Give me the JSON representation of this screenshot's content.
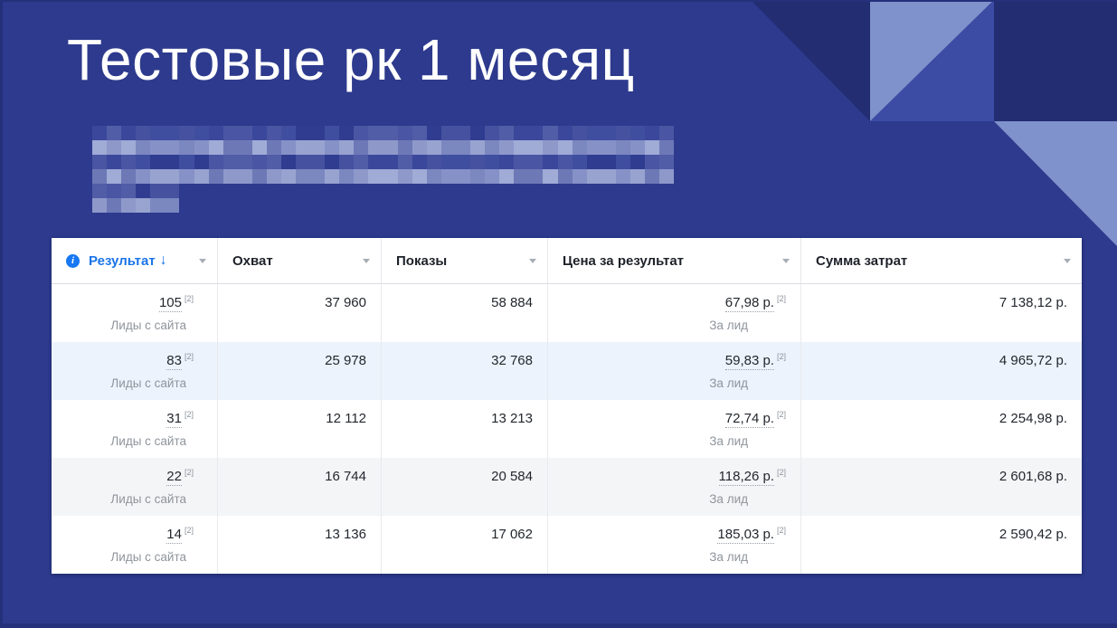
{
  "slide": {
    "title": "Тестовые рк 1 месяц"
  },
  "colors": {
    "background": "#2d3a8d",
    "edge": "#25307b",
    "corner_dark": "#232d72",
    "corner_mid": "#3c4ba3",
    "corner_light": "#7f92cb",
    "accent_blue": "#1a74e8",
    "info_icon_blue": "#1877f2",
    "row_highlight_blue": "#ecf3fc",
    "row_highlight_gray": "#f4f5f7",
    "subtext_gray": "#8f949c"
  },
  "redaction": {
    "palettes": {
      "dark": [
        "#3b479a",
        "#46529f",
        "#515da7",
        "#2f3c90",
        "#4a56a3",
        "#404ea0"
      ],
      "light": [
        "#7b87bf",
        "#8e99ca",
        "#98a3d0",
        "#6d79b6",
        "#8691c7",
        "#a0abd6"
      ]
    },
    "rows": [
      {
        "cells": 40,
        "palette": "dark",
        "short": false
      },
      {
        "cells": 40,
        "palette": "light",
        "short": false
      },
      {
        "cells": 40,
        "palette": "dark",
        "short": false
      },
      {
        "cells": 40,
        "palette": "light",
        "short": false
      },
      {
        "cells": 6,
        "palette": "dark",
        "short": true
      },
      {
        "cells": 6,
        "palette": "light",
        "short": true
      }
    ]
  },
  "table": {
    "columns": [
      {
        "key": "result",
        "label": "Результат",
        "sort_arrow": "↓",
        "sorted": true,
        "info_icon": true
      },
      {
        "key": "reach",
        "label": "Охват"
      },
      {
        "key": "impressions",
        "label": "Показы"
      },
      {
        "key": "cost_per_result",
        "label": "Цена за результат"
      },
      {
        "key": "spend",
        "label": "Сумма затрат"
      }
    ],
    "rows": [
      {
        "result": "105",
        "result_note": "[2]",
        "result_sub": "Лиды с сайта",
        "reach": "37 960",
        "impressions": "58 884",
        "cost_per_result": "67,98 р.",
        "cost_note": "[2]",
        "cost_sub": "За лид",
        "spend": "7 138,12 р.",
        "highlight": "none"
      },
      {
        "result": "83",
        "result_note": "[2]",
        "result_sub": "Лиды с сайта",
        "reach": "25 978",
        "impressions": "32 768",
        "cost_per_result": "59,83 р.",
        "cost_note": "[2]",
        "cost_sub": "За лид",
        "spend": "4 965,72 р.",
        "highlight": "blue"
      },
      {
        "result": "31",
        "result_note": "[2]",
        "result_sub": "Лиды с сайта",
        "reach": "12 112",
        "impressions": "13 213",
        "cost_per_result": "72,74 р.",
        "cost_note": "[2]",
        "cost_sub": "За лид",
        "spend": "2 254,98 р.",
        "highlight": "none"
      },
      {
        "result": "22",
        "result_note": "[2]",
        "result_sub": "Лиды с сайта",
        "reach": "16 744",
        "impressions": "20 584",
        "cost_per_result": "118,26 р.",
        "cost_note": "[2]",
        "cost_sub": "За лид",
        "spend": "2 601,68 р.",
        "highlight": "gray"
      },
      {
        "result": "14",
        "result_note": "[2]",
        "result_sub": "Лиды с сайта",
        "reach": "13 136",
        "impressions": "17 062",
        "cost_per_result": "185,03 р.",
        "cost_note": "[2]",
        "cost_sub": "За лид",
        "spend": "2 590,42 р.",
        "highlight": "none"
      }
    ]
  }
}
